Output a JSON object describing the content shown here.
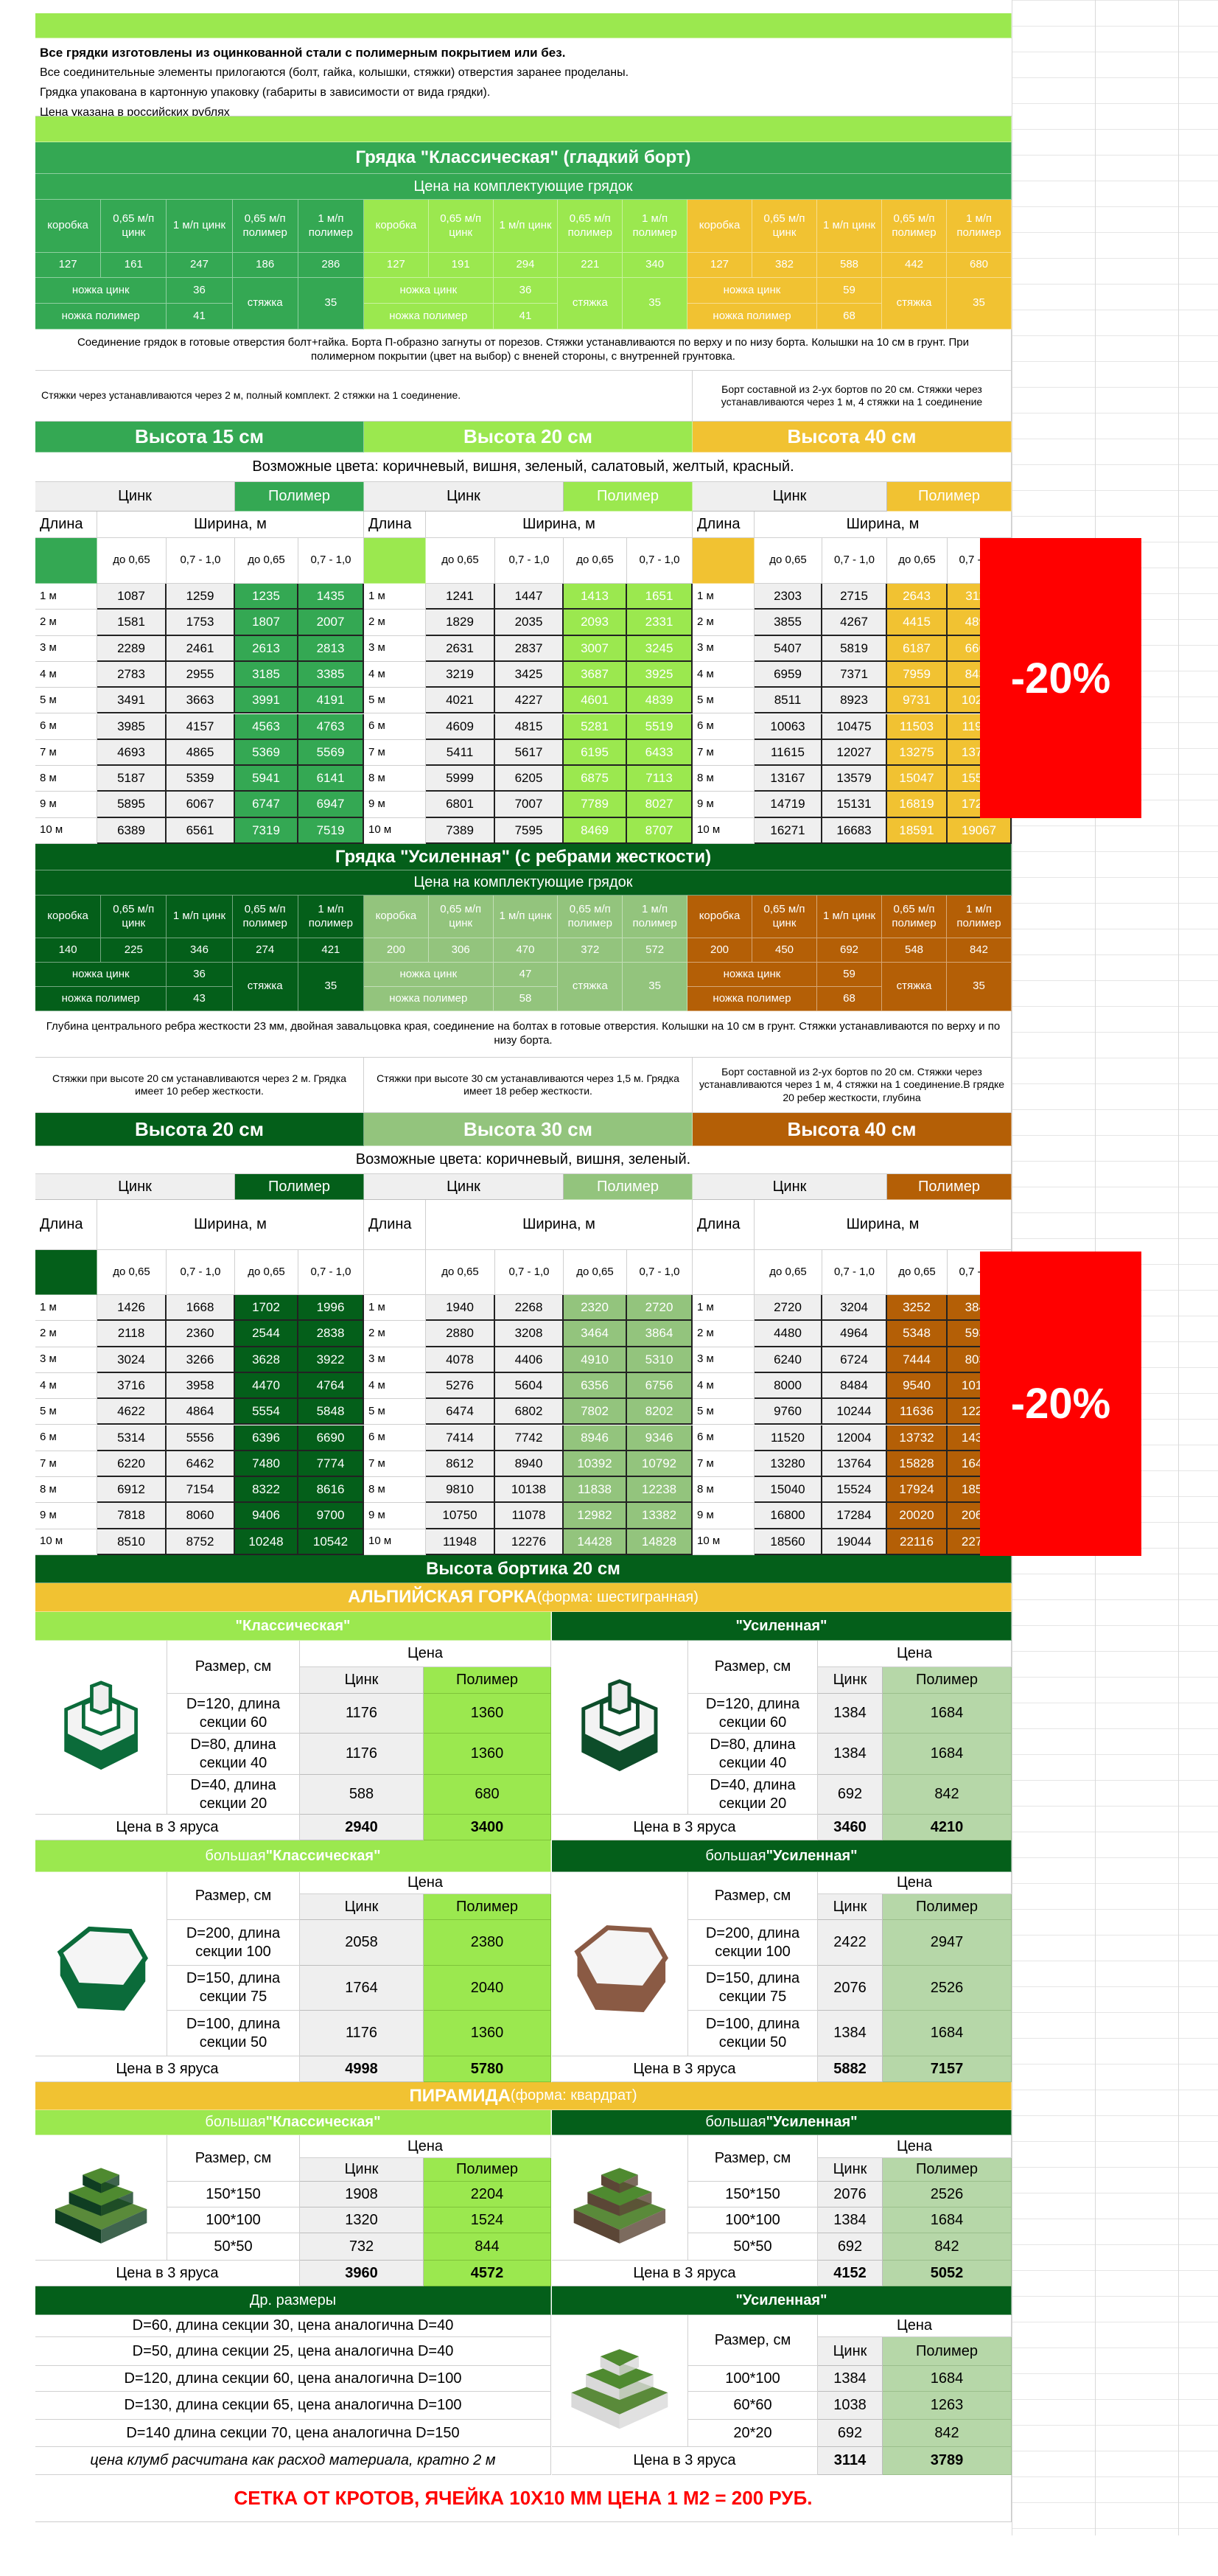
{
  "intro": {
    "lines": [
      "Все грядки изготовлены из оцинкованной стали с полимерным покрытием или без.",
      "Все соединительные элементы прилогаются (болт, гайка, колышки, стяжки) отверстия заранее проделаны.",
      "Грядка упакована в картонную упаковку (габариты в зависимости от вида грядки).",
      "Цена указана в российских рублях"
    ]
  },
  "labels": {
    "parts_headers": [
      "коробка",
      "0,65 м/п цинк",
      "1 м/п цинк",
      "0,65 м/п полимер",
      "1 м/п полимер"
    ],
    "leg_zinc": "ножка цинк",
    "leg_poly": "ножка полимер",
    "tie": "стяжка",
    "zinc": "Цинк",
    "poly": "Полимер",
    "length": "Длина",
    "width": "Ширина, м",
    "widths": [
      "до 0,65",
      "0,7 - 1,0",
      "до 0,65",
      "0,7 - 1,0"
    ],
    "lengths": [
      "1 м",
      "2 м",
      "3 м",
      "4 м",
      "5 м",
      "6 м",
      "7 м",
      "8 м",
      "9 м",
      "10 м"
    ],
    "price": "Цена",
    "size": "Размер, см",
    "total": "Цена в 3 яруса"
  },
  "classic": {
    "title": "Грядка \"Классическая\" (гладкий борт)",
    "parts_title": "Цена на комплектующие грядок",
    "parts": [
      {
        "values": [
          "127",
          "161",
          "247",
          "186",
          "286"
        ],
        "leg_zinc": "36",
        "leg_poly": "41",
        "tie": "35"
      },
      {
        "values": [
          "127",
          "191",
          "294",
          "221",
          "340"
        ],
        "leg_zinc": "36",
        "leg_poly": "41",
        "tie": "35"
      },
      {
        "values": [
          "127",
          "382",
          "588",
          "442",
          "680"
        ],
        "leg_zinc": "59",
        "leg_poly": "68",
        "tie": "35"
      }
    ],
    "description": "Соединение грядок в готовые отверстия болт+гайка. Борта П-образно загнуты от порезов. Стяжки устанавливаются по верху и по низу борта. Колышки на 10 см в грунт. При полимерном покрытии (цвет на выбор) с вненей стороны, с внутренней грунтовка.",
    "notes": [
      "Стяжки через устанавливаются через 2 м, полный комплект. 2 стяжки на 1 соединение.",
      "Борт составной из 2-ух бортов по 20 см. Стяжки через устанавливаются через 1 м, 4 стяжки на 1 соединение"
    ],
    "colors_note": "Возможные цвета: коричневый, вишня, зеленый, салатовый, желтый, красный.",
    "heights": [
      {
        "title": "Высота 15 см",
        "rows": [
          [
            1087,
            1259,
            1235,
            1435
          ],
          [
            1581,
            1753,
            1807,
            2007
          ],
          [
            2289,
            2461,
            2613,
            2813
          ],
          [
            2783,
            2955,
            3185,
            3385
          ],
          [
            3491,
            3663,
            3991,
            4191
          ],
          [
            3985,
            4157,
            4563,
            4763
          ],
          [
            4693,
            4865,
            5369,
            5569
          ],
          [
            5187,
            5359,
            5941,
            6141
          ],
          [
            5895,
            6067,
            6747,
            6947
          ],
          [
            6389,
            6561,
            7319,
            7519
          ]
        ]
      },
      {
        "title": "Высота 20 см",
        "rows": [
          [
            1241,
            1447,
            1413,
            1651
          ],
          [
            1829,
            2035,
            2093,
            2331
          ],
          [
            2631,
            2837,
            3007,
            3245
          ],
          [
            3219,
            3425,
            3687,
            3925
          ],
          [
            4021,
            4227,
            4601,
            4839
          ],
          [
            4609,
            4815,
            5281,
            5519
          ],
          [
            5411,
            5617,
            6195,
            6433
          ],
          [
            5999,
            6205,
            6875,
            7113
          ],
          [
            6801,
            7007,
            7789,
            8027
          ],
          [
            7389,
            7595,
            8469,
            8707
          ]
        ]
      },
      {
        "title": "Высота 40 см",
        "rows": [
          [
            2303,
            2715,
            2643,
            3119
          ],
          [
            3855,
            4267,
            4415,
            4891
          ],
          [
            5407,
            5819,
            6187,
            6663
          ],
          [
            6959,
            7371,
            7959,
            8435
          ],
          [
            8511,
            8923,
            9731,
            10207
          ],
          [
            10063,
            10475,
            11503,
            11979
          ],
          [
            11615,
            12027,
            13275,
            13751
          ],
          [
            13167,
            13579,
            15047,
            15523
          ],
          [
            14719,
            15131,
            16819,
            17295
          ],
          [
            16271,
            16683,
            18591,
            19067
          ]
        ]
      }
    ],
    "discount": "-20%"
  },
  "reinforced": {
    "title": "Грядка \"Усиленная\" (с ребрами жесткости)",
    "parts_title": "Цена на комплектующие грядок",
    "parts": [
      {
        "values": [
          "140",
          "225",
          "346",
          "274",
          "421"
        ],
        "leg_zinc": "36",
        "leg_poly": "43",
        "tie": "35"
      },
      {
        "values": [
          "200",
          "306",
          "470",
          "372",
          "572"
        ],
        "leg_zinc": "47",
        "leg_poly": "58",
        "tie": "35"
      },
      {
        "values": [
          "200",
          "450",
          "692",
          "548",
          "842"
        ],
        "leg_zinc": "59",
        "leg_poly": "68",
        "tie": "35"
      }
    ],
    "description": "Глубина центрального ребра жесткости 23 мм, двойная завальцовка края, соединение на болтах в готовые отверстия. Колышки на 10 см в грунт. Стяжки устанавливаются по верху и по низу борта.",
    "notes": [
      "Стяжки при высоте 20 см устанавливаются через 2 м. Грядка имеет 10 ребер жесткости.",
      "Стяжки при высоте 30 см устанавливаются через 1,5 м. Грядка имеет 18 ребер жесткости.",
      "Борт составной из 2-ух бортов по 20 см. Стяжки через устанавливаются через 1 м, 4 стяжки на 1 соединение.В грядке 20 ребер жесткости, глубина"
    ],
    "colors_note": "Возможные цвета: коричневый, вишня, зеленый.",
    "heights": [
      {
        "title": "Высота 20 см",
        "rows": [
          [
            1426,
            1668,
            1702,
            1996
          ],
          [
            2118,
            2360,
            2544,
            2838
          ],
          [
            3024,
            3266,
            3628,
            3922
          ],
          [
            3716,
            3958,
            4470,
            4764
          ],
          [
            4622,
            4864,
            5554,
            5848
          ],
          [
            5314,
            5556,
            6396,
            6690
          ],
          [
            6220,
            6462,
            7480,
            7774
          ],
          [
            6912,
            7154,
            8322,
            8616
          ],
          [
            7818,
            8060,
            9406,
            9700
          ],
          [
            8510,
            8752,
            10248,
            10542
          ]
        ]
      },
      {
        "title": "Высота 30 см",
        "rows": [
          [
            1940,
            2268,
            2320,
            2720
          ],
          [
            2880,
            3208,
            3464,
            3864
          ],
          [
            4078,
            4406,
            4910,
            5310
          ],
          [
            5276,
            5604,
            6356,
            6756
          ],
          [
            6474,
            6802,
            7802,
            8202
          ],
          [
            7414,
            7742,
            8946,
            9346
          ],
          [
            8612,
            8940,
            10392,
            10792
          ],
          [
            9810,
            10138,
            11838,
            12238
          ],
          [
            10750,
            11078,
            12982,
            13382
          ],
          [
            11948,
            12276,
            14428,
            14828
          ]
        ]
      },
      {
        "title": "Высота 40 см",
        "rows": [
          [
            2720,
            3204,
            3252,
            3840
          ],
          [
            4480,
            4964,
            5348,
            5936
          ],
          [
            6240,
            6724,
            7444,
            8032
          ],
          [
            8000,
            8484,
            9540,
            10128
          ],
          [
            9760,
            10244,
            11636,
            12224
          ],
          [
            11520,
            12004,
            13732,
            14320
          ],
          [
            13280,
            13764,
            15828,
            16416
          ],
          [
            15040,
            15524,
            17924,
            18512
          ],
          [
            16800,
            17284,
            20020,
            20608
          ],
          [
            18560,
            19044,
            22116,
            22704
          ]
        ]
      }
    ],
    "discount": "-20%"
  },
  "beds": {
    "height_title": "Высота бортика 20 см",
    "alpine": {
      "title_bold": "АЛЬПИЙСКАЯ ГОРКА",
      "title_rest": " (форма: шестигранная)",
      "panels": [
        {
          "prefix": "",
          "name": "\"Классическая\"",
          "rows": [
            {
              "size": "D=120, длина секции 60",
              "zinc": "1176",
              "poly": "1360"
            },
            {
              "size": "D=80, длина секции 40",
              "zinc": "1176",
              "poly": "1360"
            },
            {
              "size": "D=40, длина секции 20",
              "zinc": "588",
              "poly": "680"
            }
          ],
          "total_zinc": "2940",
          "total_poly": "3400"
        },
        {
          "prefix": "",
          "name": "\"Усиленная\"",
          "rows": [
            {
              "size": "D=120, длина секции 60",
              "zinc": "1384",
              "poly": "1684"
            },
            {
              "size": "D=80, длина секции 40",
              "zinc": "1384",
              "poly": "1684"
            },
            {
              "size": "D=40, длина секции 20",
              "zinc": "692",
              "poly": "842"
            }
          ],
          "total_zinc": "3460",
          "total_poly": "4210"
        },
        {
          "prefix": "большая ",
          "name": "\"Классическая\"",
          "rows": [
            {
              "size": "D=200, длина секции 100",
              "zinc": "2058",
              "poly": "2380"
            },
            {
              "size": "D=150, длина секции 75",
              "zinc": "1764",
              "poly": "2040"
            },
            {
              "size": "D=100, длина секции 50",
              "zinc": "1176",
              "poly": "1360"
            }
          ],
          "total_zinc": "4998",
          "total_poly": "5780"
        },
        {
          "prefix": "большая ",
          "name": "\"Усиленная\"",
          "rows": [
            {
              "size": "D=200, длина секции 100",
              "zinc": "2422",
              "poly": "2947"
            },
            {
              "size": "D=150, длина секции 75",
              "zinc": "2076",
              "poly": "2526"
            },
            {
              "size": "D=100, длина секции 50",
              "zinc": "1384",
              "poly": "1684"
            }
          ],
          "total_zinc": "5882",
          "total_poly": "7157"
        }
      ]
    },
    "pyramid": {
      "title_bold": "ПИРАМИДА",
      "title_rest": " (форма: квардрат)",
      "panels": [
        {
          "prefix": "большая ",
          "name": "\"Классическая\"",
          "rows": [
            {
              "size": "150*150",
              "zinc": "1908",
              "poly": "2204"
            },
            {
              "size": "100*100",
              "zinc": "1320",
              "poly": "1524"
            },
            {
              "size": "50*50",
              "zinc": "732",
              "poly": "844"
            }
          ],
          "total_zinc": "3960",
          "total_poly": "4572"
        },
        {
          "prefix": "большая ",
          "name": "\"Усиленная\"",
          "rows": [
            {
              "size": "150*150",
              "zinc": "2076",
              "poly": "2526"
            },
            {
              "size": "100*100",
              "zinc": "1384",
              "poly": "1684"
            },
            {
              "size": "50*50",
              "zinc": "692",
              "poly": "842"
            }
          ],
          "total_zinc": "4152",
          "total_poly": "5052"
        },
        {
          "prefix": "",
          "name": "\"Усиленная\"",
          "rows": [
            {
              "size": "100*100",
              "zinc": "1384",
              "poly": "1684"
            },
            {
              "size": "60*60",
              "zinc": "1038",
              "poly": "1263"
            },
            {
              "size": "20*20",
              "zinc": "692",
              "poly": "842"
            }
          ],
          "total_zinc": "3114",
          "total_poly": "3789"
        }
      ]
    },
    "other": {
      "title": "Др. размеры",
      "lines": [
        "D=60, длина секции 30, цена аналогична D=40",
        "D=50, длина секции 25, цена аналогична D=40",
        "D=120, длина секции 60, цена аналогична D=100",
        "D=130, длина секции 65, цена аналогична D=100",
        "D=140 длина секции 70, цена аналогична D=150"
      ],
      "note": "цена клумб расчитана как расход материала, кратно 2 м"
    }
  },
  "mole_net": "СЕТКА ОТ КРОТОВ, ЯЧЕЙКА 10Х10 ММ ЦЕНА 1 М2 = 200 РУБ.",
  "theme_colors": {
    "classic_15": "#34a853",
    "classic_20": "#9be84f",
    "classic_40": "#f1c232",
    "reinforced_20": "#045f1a",
    "reinforced_30": "#93c47d",
    "reinforced_40": "#b45f06",
    "discount": "#ff0000"
  }
}
